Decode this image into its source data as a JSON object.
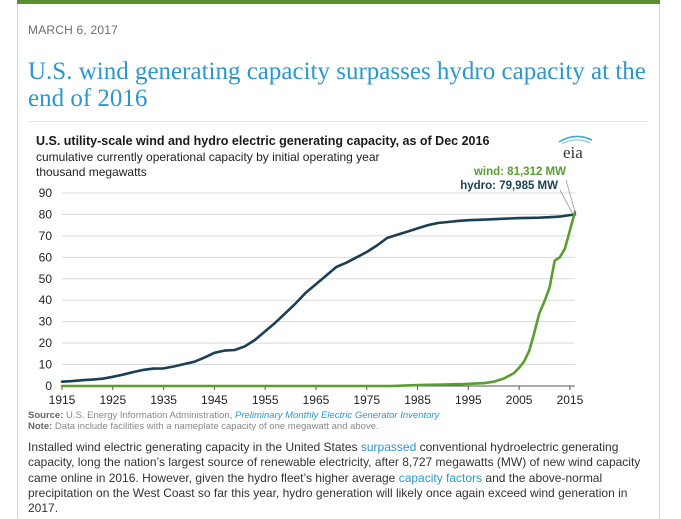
{
  "article": {
    "date": "MARCH 6, 2017",
    "title": "U.S. wind generating capacity surpasses hydro capacity at the end of 2016",
    "source_label": "Source:",
    "source_text": "U.S. Energy Information Administration,",
    "source_link": "Preliminary Monthly Electric Generator Inventory",
    "note_label": "Note:",
    "note_text": "Data include facilities with a nameplate capacity of one megawatt and above.",
    "body": {
      "p1": "Installed wind electric generating capacity in the United States",
      "link1": "surpassed",
      "p2": "conventional hydroelectric generating capacity, long the nation’s largest source of renewable electricity, after 8,727 megawatts (MW) of new wind capacity came online in 2016. However, given the hydro fleet’s higher average",
      "link2": "capacity factors",
      "p3": "and the above-normal precipitation on the West Coast so far this year, hydro generation will likely once again exceed wind generation in 2017."
    }
  },
  "logo": {
    "text": "eia"
  },
  "chart_data": {
    "type": "line",
    "title": "U.S. utility-scale wind and hydro electric generating capacity, as of Dec 2016",
    "subtitle": "cumulative currently operational capacity by initial operating year",
    "ylabel": "thousand megawatts",
    "xlabel": "",
    "xlim": [
      1915,
      2016
    ],
    "ylim": [
      0,
      90
    ],
    "xticks": [
      1915,
      1925,
      1935,
      1945,
      1955,
      1965,
      1975,
      1985,
      1995,
      2005,
      2015
    ],
    "yticks": [
      0,
      10,
      20,
      30,
      40,
      50,
      60,
      70,
      80,
      90
    ],
    "grid": "horizontal",
    "series": [
      {
        "name": "hydro",
        "color": "#1b3f55",
        "label": "hydro: 79,985 MW",
        "x": [
          1915,
          1917,
          1919,
          1921,
          1923,
          1925,
          1927,
          1929,
          1931,
          1933,
          1935,
          1937,
          1939,
          1941,
          1943,
          1945,
          1947,
          1949,
          1951,
          1953,
          1955,
          1957,
          1959,
          1961,
          1963,
          1965,
          1967,
          1969,
          1971,
          1973,
          1975,
          1977,
          1979,
          1981,
          1983,
          1985,
          1987,
          1989,
          1991,
          1993,
          1995,
          1997,
          1999,
          2001,
          2003,
          2005,
          2007,
          2009,
          2011,
          2013,
          2014,
          2015,
          2016
        ],
        "values": [
          2,
          2.3,
          2.7,
          3,
          3.4,
          4.3,
          5.3,
          6.5,
          7.5,
          8.1,
          8.2,
          9.1,
          10.2,
          11.3,
          13.2,
          15.5,
          16.5,
          16.8,
          18.5,
          21.5,
          25.5,
          29.5,
          34,
          38.5,
          43.5,
          47.5,
          51.5,
          55.5,
          57.5,
          60,
          62.5,
          65.5,
          69,
          70.5,
          72,
          73.5,
          75,
          76,
          76.5,
          77,
          77.3,
          77.5,
          77.7,
          77.9,
          78.1,
          78.3,
          78.4,
          78.5,
          78.7,
          79,
          79.3,
          79.7,
          80
        ]
      },
      {
        "name": "wind",
        "color": "#5a9e2f",
        "label": "wind: 81,312 MW",
        "x": [
          1915,
          1980,
          1983,
          1986,
          1990,
          1994,
          1998,
          2000,
          2002,
          2004,
          2005,
          2006,
          2007,
          2008,
          2009,
          2010,
          2011,
          2012,
          2013,
          2014,
          2015,
          2016
        ],
        "values": [
          0,
          0,
          0.3,
          0.5,
          0.7,
          0.9,
          1.3,
          2,
          3.5,
          6,
          8.5,
          11.5,
          16.5,
          25,
          34,
          39.5,
          46,
          58.5,
          60,
          64,
          72.5,
          81.3
        ]
      }
    ]
  }
}
